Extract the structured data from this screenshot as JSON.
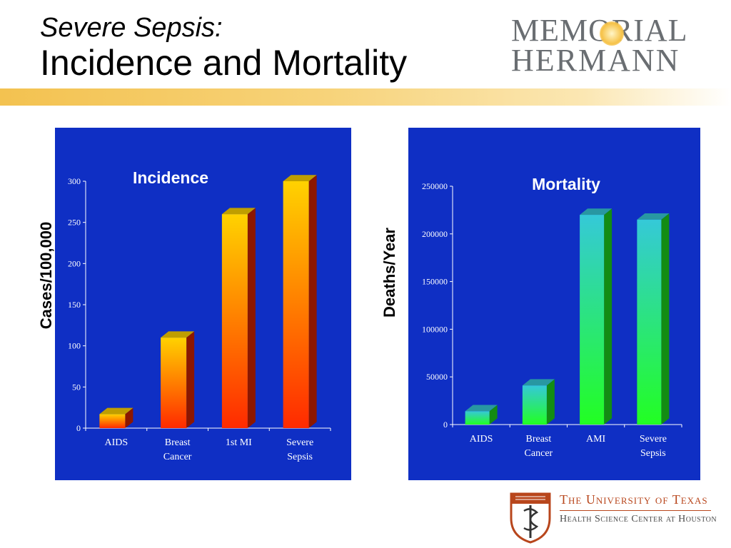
{
  "slide": {
    "title_line1": "Severe Sepsis:",
    "title_line2": "Incidence and Mortality"
  },
  "logos": {
    "top_right_line1": "MEMORIAL",
    "top_right_line2": "HERMANN",
    "bottom_right_line1": "The University of Texas",
    "bottom_right_line2": "Health Science Center at Houston"
  },
  "colors": {
    "panel_background": "#0f2fc4",
    "incidence_bar_top": "#ffd200",
    "incidence_bar_bottom": "#ff2a00",
    "mortality_bar_top": "#35c9d8",
    "mortality_bar_bottom": "#22ff22"
  },
  "chart_data": [
    {
      "type": "bar",
      "title": "Incidence",
      "ylabel": "Cases/100,000",
      "categories": [
        [
          "AIDS"
        ],
        [
          "Breast",
          "Cancer"
        ],
        [
          "1st MI"
        ],
        [
          "Severe",
          "Sepsis"
        ]
      ],
      "values": [
        17,
        110,
        260,
        300
      ],
      "ylim": [
        0,
        300
      ],
      "yticks": [
        0,
        50,
        100,
        150,
        200,
        250,
        300
      ],
      "grid": false,
      "legend": "none"
    },
    {
      "type": "bar",
      "title": "Mortality",
      "ylabel": "Deaths/Year",
      "categories": [
        [
          "AIDS"
        ],
        [
          "Breast",
          "Cancer"
        ],
        [
          "AMI"
        ],
        [
          "Severe",
          "Sepsis"
        ]
      ],
      "values": [
        14000,
        41000,
        220000,
        215000
      ],
      "ylim": [
        0,
        250000
      ],
      "yticks": [
        0,
        50000,
        100000,
        150000,
        200000,
        250000
      ],
      "grid": false,
      "legend": "none"
    }
  ]
}
